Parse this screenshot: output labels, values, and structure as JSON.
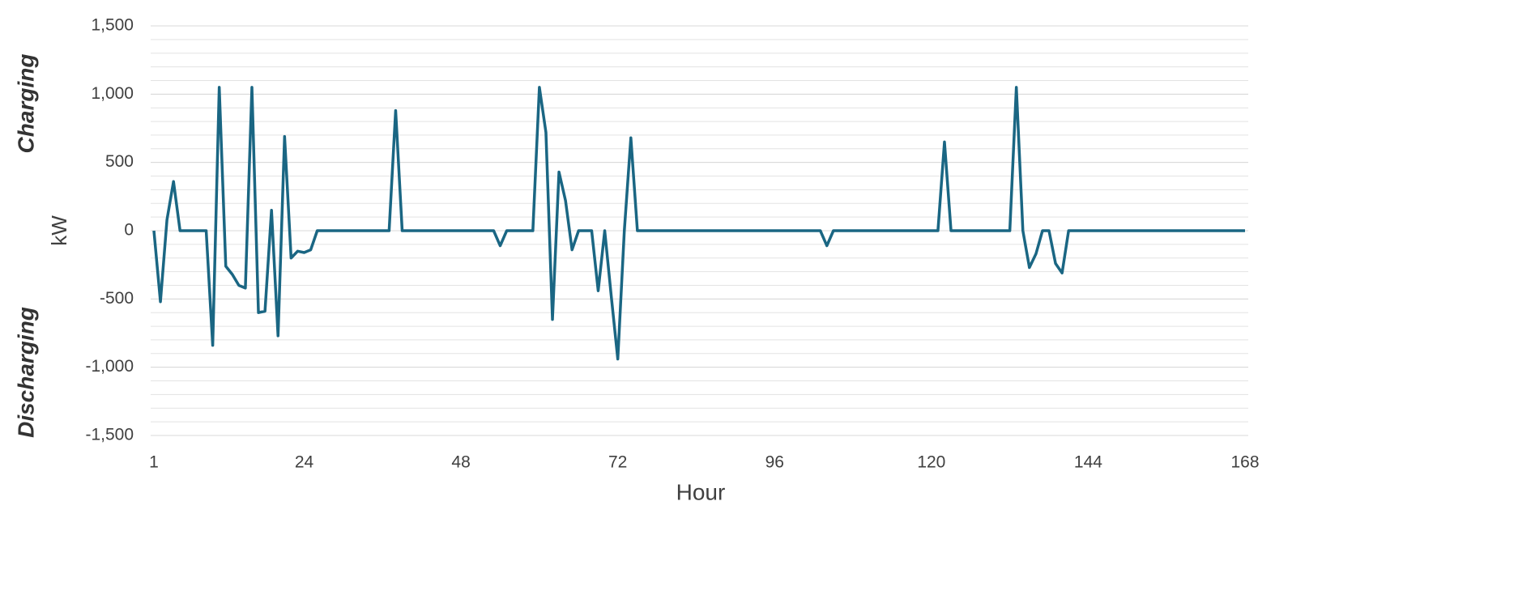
{
  "chart_data": {
    "type": "line",
    "x_label": "Hour",
    "y_label": "kW",
    "annotations": [
      "Charging",
      "Discharging"
    ],
    "x": [
      1,
      2,
      3,
      4,
      5,
      6,
      7,
      8,
      9,
      10,
      11,
      12,
      13,
      14,
      15,
      16,
      17,
      18,
      19,
      20,
      21,
      22,
      23,
      24,
      25,
      26,
      27,
      28,
      29,
      30,
      31,
      32,
      33,
      34,
      35,
      36,
      37,
      38,
      39,
      40,
      41,
      42,
      43,
      44,
      45,
      46,
      47,
      48,
      49,
      50,
      51,
      52,
      53,
      54,
      55,
      56,
      57,
      58,
      59,
      60,
      61,
      62,
      63,
      64,
      65,
      66,
      67,
      68,
      69,
      70,
      71,
      72,
      73,
      74,
      75,
      76,
      77,
      78,
      79,
      80,
      81,
      82,
      83,
      84,
      85,
      86,
      87,
      88,
      89,
      90,
      91,
      92,
      93,
      94,
      95,
      96,
      97,
      98,
      99,
      100,
      101,
      102,
      103,
      104,
      105,
      106,
      107,
      108,
      109,
      110,
      111,
      112,
      113,
      114,
      115,
      116,
      117,
      118,
      119,
      120,
      121,
      122,
      123,
      124,
      125,
      126,
      127,
      128,
      129,
      130,
      131,
      132,
      133,
      134,
      135,
      136,
      137,
      138,
      139,
      140,
      141,
      142,
      143,
      144,
      145,
      146,
      147,
      148,
      149,
      150,
      151,
      152,
      153,
      154,
      155,
      156,
      157,
      158,
      159,
      160,
      161,
      162,
      163,
      164,
      165,
      166,
      167,
      168
    ],
    "series": [
      {
        "color": "#1a6683",
        "values": [
          0,
          -520,
          80,
          360,
          0,
          0,
          0,
          0,
          0,
          -840,
          1050,
          -260,
          -320,
          -400,
          -420,
          1050,
          -600,
          -590,
          150,
          -770,
          690,
          -200,
          -150,
          -160,
          -140,
          0,
          0,
          0,
          0,
          0,
          0,
          0,
          0,
          0,
          0,
          0,
          0,
          880,
          0,
          0,
          0,
          0,
          0,
          0,
          0,
          0,
          0,
          0,
          0,
          0,
          0,
          0,
          0,
          -110,
          0,
          0,
          0,
          0,
          0,
          1050,
          720,
          -650,
          430,
          220,
          -140,
          0,
          0,
          0,
          -440,
          0,
          -480,
          -940,
          0,
          680,
          0,
          0,
          0,
          0,
          0,
          0,
          0,
          0,
          0,
          0,
          0,
          0,
          0,
          0,
          0,
          0,
          0,
          0,
          0,
          0,
          0,
          0,
          0,
          0,
          0,
          0,
          0,
          0,
          0,
          -110,
          0,
          0,
          0,
          0,
          0,
          0,
          0,
          0,
          0,
          0,
          0,
          0,
          0,
          0,
          0,
          0,
          0,
          650,
          0,
          0,
          0,
          0,
          0,
          0,
          0,
          0,
          0,
          0,
          1050,
          0,
          -270,
          -170,
          0,
          0,
          -240,
          -310,
          0,
          0,
          0,
          0,
          0,
          0,
          0,
          0,
          0,
          0,
          0,
          0,
          0,
          0,
          0,
          0,
          0,
          0,
          0,
          0,
          0,
          0,
          0,
          0,
          0,
          0,
          0,
          0
        ]
      }
    ],
    "xlim": [
      1,
      168
    ],
    "xticks": [
      1,
      24,
      48,
      72,
      96,
      120,
      144,
      168
    ],
    "ylim": [
      -1500,
      1500
    ],
    "yticks": [
      {
        "value": -1500,
        "label": "-1,500"
      },
      {
        "value": -1000,
        "label": "-1,000"
      },
      -500,
      0,
      500,
      {
        "value": 1000,
        "label": "1,000"
      },
      {
        "value": 1500,
        "label": "1,500"
      }
    ],
    "minor_yticks": [
      -1500,
      -1400,
      -1300,
      -1200,
      -1100,
      -1000,
      -900,
      -800,
      -700,
      -600,
      -500,
      -400,
      -300,
      -200,
      -100,
      0,
      100,
      200,
      300,
      400,
      500,
      600,
      700,
      800,
      900,
      1000,
      1100,
      1200,
      1300,
      1400,
      1500
    ],
    "grid": true
  }
}
